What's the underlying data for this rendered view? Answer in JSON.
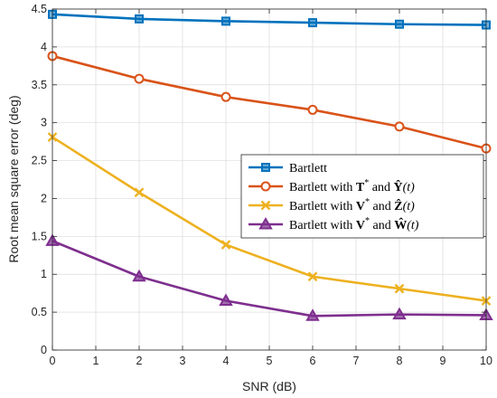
{
  "chart_data": {
    "type": "line",
    "title": "",
    "xlabel": "SNR (dB)",
    "ylabel": "Root mean square error (deg)",
    "xlim": [
      0,
      10
    ],
    "ylim": [
      0,
      4.5
    ],
    "xticks": [
      0,
      1,
      2,
      3,
      4,
      5,
      6,
      7,
      8,
      9,
      10
    ],
    "yticks": [
      0,
      0.5,
      1,
      1.5,
      2,
      2.5,
      3,
      3.5,
      4,
      4.5
    ],
    "grid": true,
    "legend_position": "center-right",
    "x": [
      0,
      2,
      4,
      6,
      8,
      10
    ],
    "series": [
      {
        "name": "Bartlett",
        "legend": {
          "prefix": "Bartlett",
          "sym1": "",
          "sup1": "",
          "mid": "",
          "sym2": "",
          "arg": ""
        },
        "values": [
          4.43,
          4.37,
          4.34,
          4.32,
          4.3,
          4.29
        ],
        "color": "#0072BD",
        "marker": "square"
      },
      {
        "name": "Bartlett with T* and Ŷ(t)",
        "legend": {
          "prefix": "Bartlett with ",
          "sym1": "T",
          "sup1": "*",
          "mid": " and ",
          "sym2": "Ŷ",
          "arg": "(t)"
        },
        "values": [
          3.88,
          3.58,
          3.34,
          3.17,
          2.95,
          2.66
        ],
        "color": "#D95319",
        "marker": "circle"
      },
      {
        "name": "Bartlett with V* and Ẑ(t)",
        "legend": {
          "prefix": "Bartlett with ",
          "sym1": "V",
          "sup1": "*",
          "mid": " and ",
          "sym2": "Ẑ",
          "arg": "(t)"
        },
        "values": [
          2.81,
          2.08,
          1.39,
          0.97,
          0.81,
          0.65
        ],
        "color": "#EDB120",
        "marker": "x"
      },
      {
        "name": "Bartlett with V* and Ŵ(t)",
        "legend": {
          "prefix": "Bartlett with ",
          "sym1": "V",
          "sup1": "*",
          "mid": " and ",
          "sym2": "Ŵ",
          "arg": "(t)"
        },
        "values": [
          1.44,
          0.97,
          0.65,
          0.45,
          0.47,
          0.46
        ],
        "color": "#7E2F8E",
        "marker": "triangle"
      }
    ]
  }
}
